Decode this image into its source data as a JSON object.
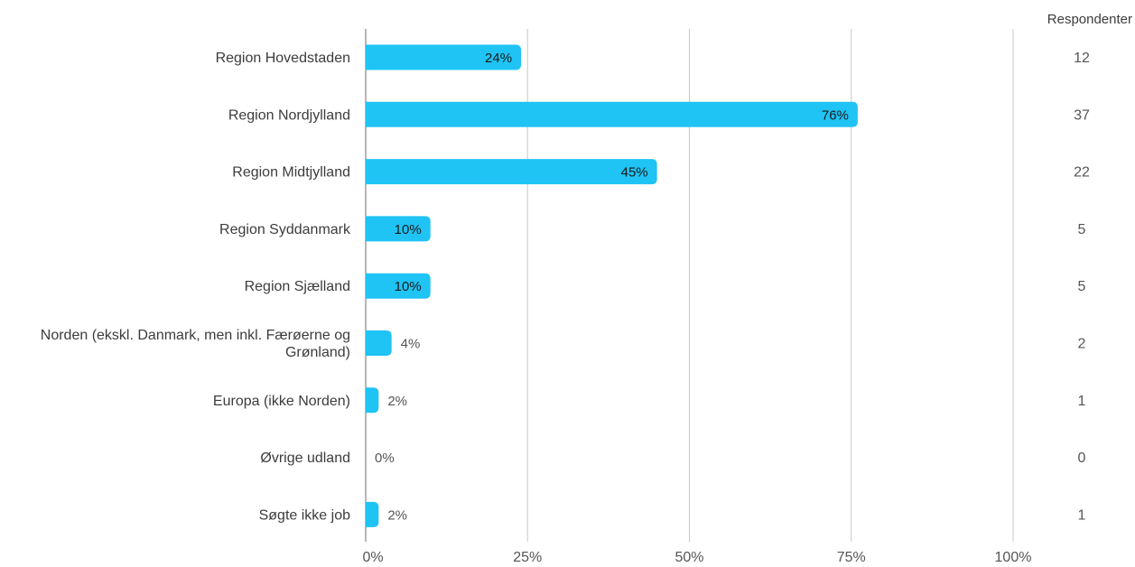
{
  "chart_data": {
    "type": "bar",
    "orientation": "horizontal",
    "categories": [
      [
        "Region Hovedstaden"
      ],
      [
        "Region Nordjylland"
      ],
      [
        "Region Midtjylland"
      ],
      [
        "Region Syddanmark"
      ],
      [
        "Region Sjælland"
      ],
      [
        "Norden (ekskl. Danmark, men inkl. Færøerne og",
        "Grønland)"
      ],
      [
        "Europa (ikke Norden)"
      ],
      [
        "Øvrige udland"
      ],
      [
        "Søgte ikke job"
      ]
    ],
    "values": [
      24,
      76,
      45,
      10,
      10,
      4,
      2,
      0,
      2
    ],
    "value_labels": [
      "24%",
      "76%",
      "45%",
      "10%",
      "10%",
      "4%",
      "2%",
      "0%",
      "2%"
    ],
    "respondents_header": "Respondenter",
    "respondents": [
      "12",
      "37",
      "22",
      "5",
      "5",
      "2",
      "1",
      "0",
      "1"
    ],
    "x_ticks": [
      {
        "value": 0,
        "label": "0%"
      },
      {
        "value": 25,
        "label": "25%"
      },
      {
        "value": 50,
        "label": "50%"
      },
      {
        "value": 75,
        "label": "75%"
      },
      {
        "value": 100,
        "label": "100%"
      }
    ],
    "xlim": [
      0,
      100
    ],
    "grid": true,
    "bar_color": "#1fc3f4",
    "axis_color": "#9e9e9e",
    "grid_color": "#c8c8c8",
    "label_color": "#3c3c3c"
  }
}
